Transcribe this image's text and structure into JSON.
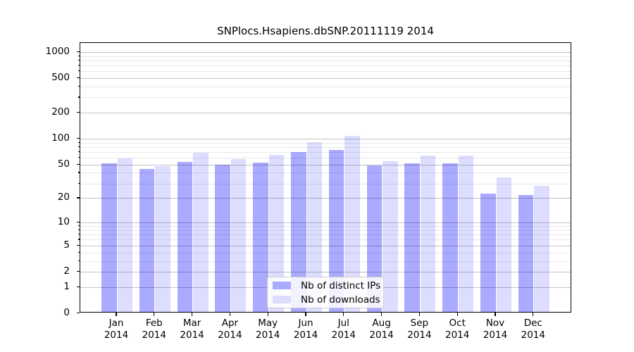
{
  "chart_data": {
    "type": "bar",
    "title": "SNPlocs.Hsapiens.dbSNP.20111119 2014",
    "categories": [
      "Jan 2014",
      "Feb 2014",
      "Mar 2014",
      "Apr 2014",
      "May 2014",
      "Jun 2014",
      "Jul 2014",
      "Aug 2014",
      "Sep 2014",
      "Oct 2014",
      "Nov 2014",
      "Dec 2014"
    ],
    "series": [
      {
        "name": "Nb of distinct IPs",
        "color": "#aaaaff",
        "values": [
          50,
          43,
          52,
          48,
          51,
          68,
          72,
          47,
          50,
          50,
          22,
          21
        ]
      },
      {
        "name": "Nb of downloads",
        "color": "#ddddff",
        "values": [
          57,
          46,
          66,
          56,
          62,
          88,
          104,
          53,
          61,
          61,
          34,
          27
        ]
      }
    ],
    "xlabel": "",
    "ylabel": "",
    "yscale": "log1p",
    "ylim": [
      0,
      1270
    ],
    "y_major_ticks": [
      0,
      1,
      2,
      5,
      10,
      20,
      50,
      100,
      200,
      500,
      1000
    ],
    "y_minor_ticks": [
      3,
      4,
      6,
      7,
      8,
      9,
      30,
      40,
      60,
      70,
      80,
      90,
      300,
      400,
      600,
      700,
      800,
      900
    ],
    "grid": true,
    "legend_position": "lower-center"
  },
  "colors": {
    "background": "#ffffff",
    "axis": "#000000",
    "major_grid": "#c9c9c9",
    "minor_grid": "#e9e9e9",
    "legend_border": "#cccccc"
  }
}
